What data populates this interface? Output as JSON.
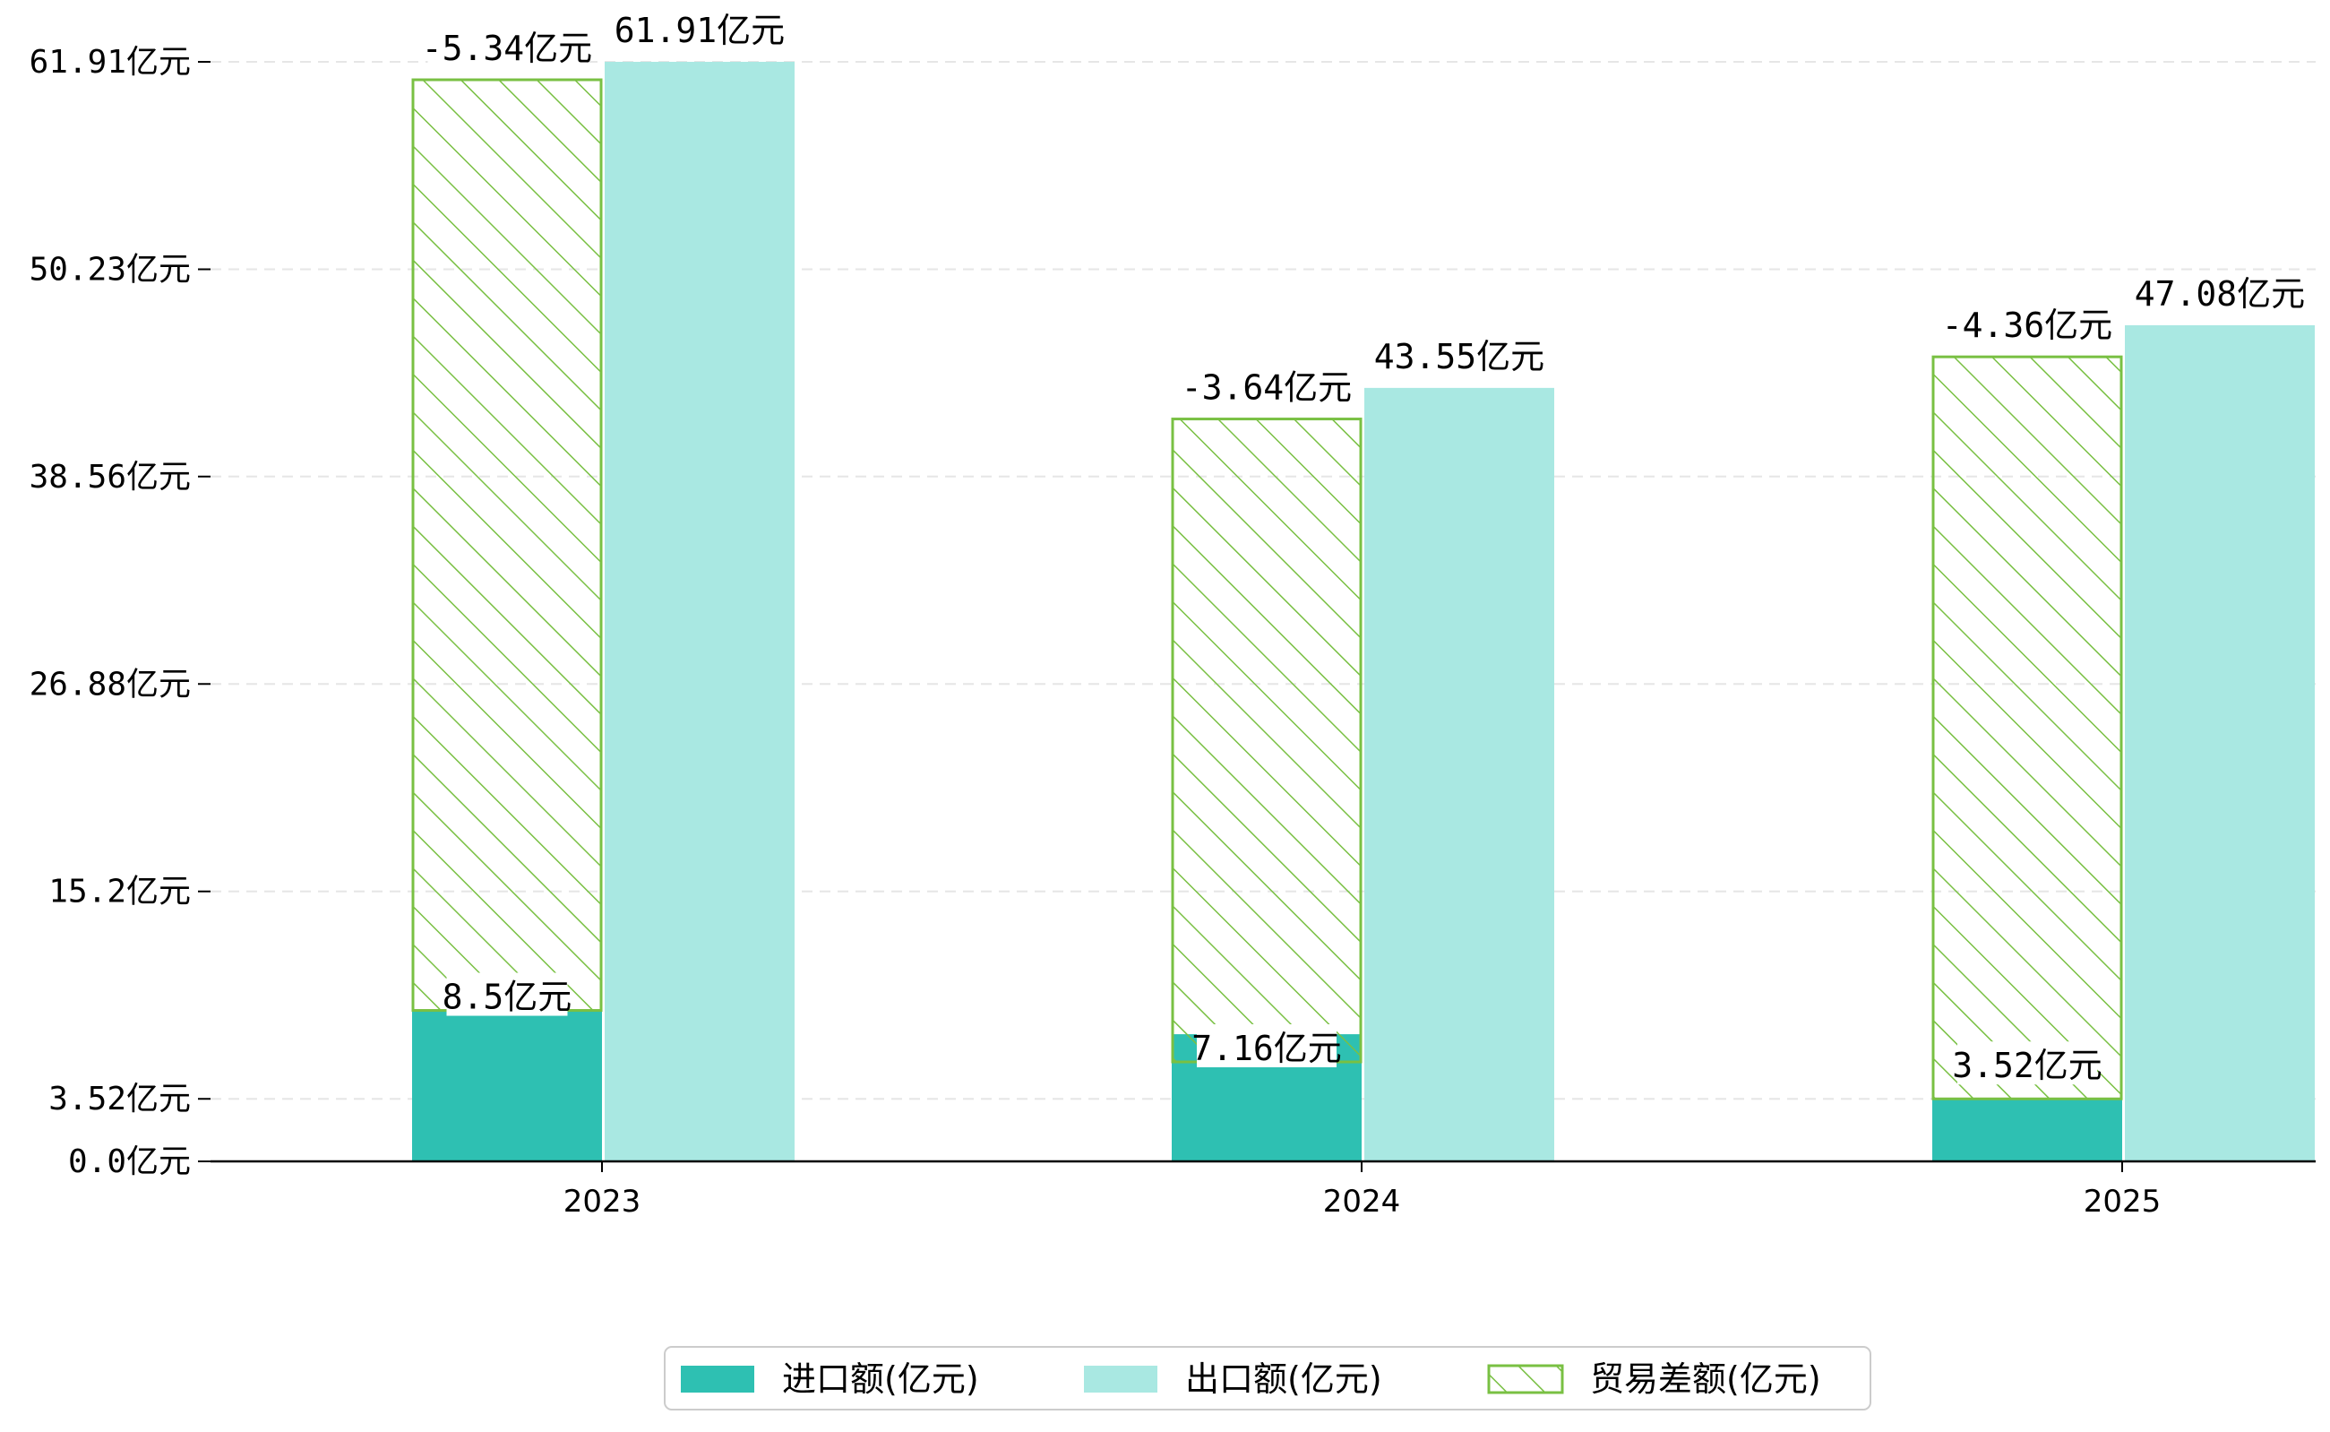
{
  "colors": {
    "import": "#2ec0b2",
    "export": "#a9e8e2",
    "balance": "#79c043",
    "grid": "#e6e6e6",
    "axis": "#000000"
  },
  "chart_data": {
    "type": "bar",
    "title": "",
    "xlabel": "",
    "ylabel": "",
    "ylim": [
      0,
      66.5
    ],
    "grid": true,
    "legend_position": "bottom-center",
    "categories": [
      "2023",
      "2024",
      "2025"
    ],
    "y_ticks": [
      {
        "value": 0.0,
        "label": "0.0亿元"
      },
      {
        "value": 3.52,
        "label": "3.52亿元"
      },
      {
        "value": 15.2,
        "label": "15.2亿元"
      },
      {
        "value": 26.88,
        "label": "26.88亿元"
      },
      {
        "value": 38.56,
        "label": "38.56亿元"
      },
      {
        "value": 50.23,
        "label": "50.23亿元"
      },
      {
        "value": 61.91,
        "label": "61.91亿元"
      }
    ],
    "series": [
      {
        "name": "进口额(亿元)",
        "values": [
          8.5,
          7.16,
          3.52
        ],
        "labels": [
          "8.5亿元",
          "7.16亿元",
          "3.52亿元"
        ]
      },
      {
        "name": "出口额(亿元)",
        "values": [
          61.91,
          43.55,
          47.08
        ],
        "labels": [
          "61.91亿元",
          "43.55亿元",
          "47.08亿元"
        ]
      },
      {
        "name": "贸易差额(亿元)",
        "values": [
          -5.34,
          -3.64,
          -4.36
        ],
        "labels": [
          "-5.34亿元",
          "-3.64亿元",
          "-4.36亿元"
        ],
        "band": [
          [
            8.5,
            60.9
          ],
          [
            5.6,
            41.8
          ],
          [
            3.52,
            45.3
          ]
        ]
      }
    ]
  }
}
